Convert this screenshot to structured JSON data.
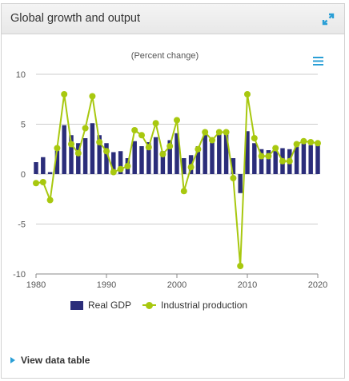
{
  "panel": {
    "title": "Global growth and output",
    "expand_icon": "expand-arrows-icon",
    "menu_icon": "hamburger-menu-icon"
  },
  "colors": {
    "gdp": "#2b2d7a",
    "industrial": "#a8c80f",
    "accent": "#2a9fd6",
    "grid": "#cccccc"
  },
  "chart_data": {
    "type": "bar",
    "subtitle": "(Percent change)",
    "title": "",
    "xlabel": "",
    "ylabel": "",
    "xlim": [
      1980,
      2020
    ],
    "ylim": [
      -10,
      10
    ],
    "x_ticks": [
      "1980",
      "1990",
      "2000",
      "2010",
      "2020"
    ],
    "y_ticks": [
      "10",
      "5",
      "0",
      "-5",
      "-10"
    ],
    "x": [
      1980,
      1981,
      1982,
      1983,
      1984,
      1985,
      1986,
      1987,
      1988,
      1989,
      1990,
      1991,
      1992,
      1993,
      1994,
      1995,
      1996,
      1997,
      1998,
      1999,
      2000,
      2001,
      2002,
      2003,
      2004,
      2005,
      2006,
      2007,
      2008,
      2009,
      2010,
      2011,
      2012,
      2013,
      2014,
      2015,
      2016,
      2017,
      2018,
      2019,
      2020
    ],
    "series": [
      {
        "name": "Real GDP",
        "type": "bar",
        "values": [
          1.2,
          1.7,
          0.2,
          2.8,
          4.9,
          3.9,
          3.1,
          3.6,
          5.1,
          3.9,
          3.1,
          2.2,
          2.3,
          1.6,
          3.3,
          2.8,
          3.2,
          3.7,
          2.3,
          3.4,
          4.1,
          1.6,
          1.9,
          2.8,
          4.2,
          3.6,
          4.1,
          4.1,
          1.6,
          -1.9,
          4.3,
          3.1,
          2.5,
          2.4,
          2.6,
          2.6,
          2.5,
          3.2,
          3.1,
          2.9,
          2.9
        ]
      },
      {
        "name": "Industrial production",
        "type": "line",
        "values": [
          -0.9,
          -0.8,
          -2.6,
          2.6,
          8.0,
          3.0,
          2.1,
          4.6,
          7.8,
          3.2,
          2.3,
          0.2,
          0.5,
          0.8,
          4.4,
          3.9,
          2.7,
          5.1,
          2.0,
          2.8,
          5.4,
          -1.7,
          0.7,
          2.5,
          4.2,
          3.4,
          4.2,
          4.2,
          -0.4,
          -9.2,
          8.0,
          3.6,
          1.8,
          1.8,
          2.6,
          1.3,
          1.3,
          3.0,
          3.3,
          3.2,
          3.1
        ]
      }
    ],
    "legend_position": "bottom",
    "grid": true
  },
  "footer": {
    "data_table_label": "View data table"
  }
}
